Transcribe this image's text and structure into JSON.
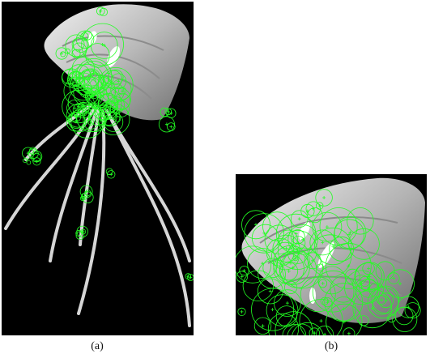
{
  "figure": {
    "panels": [
      {
        "id": "a",
        "label": "(a)"
      },
      {
        "id": "b",
        "label": "(b)"
      }
    ],
    "colors": {
      "background": "#000000",
      "keypoint": "#22ff22",
      "jellyfish_body": "#bdbdbd",
      "tentacle": "#d8d8d8"
    }
  }
}
